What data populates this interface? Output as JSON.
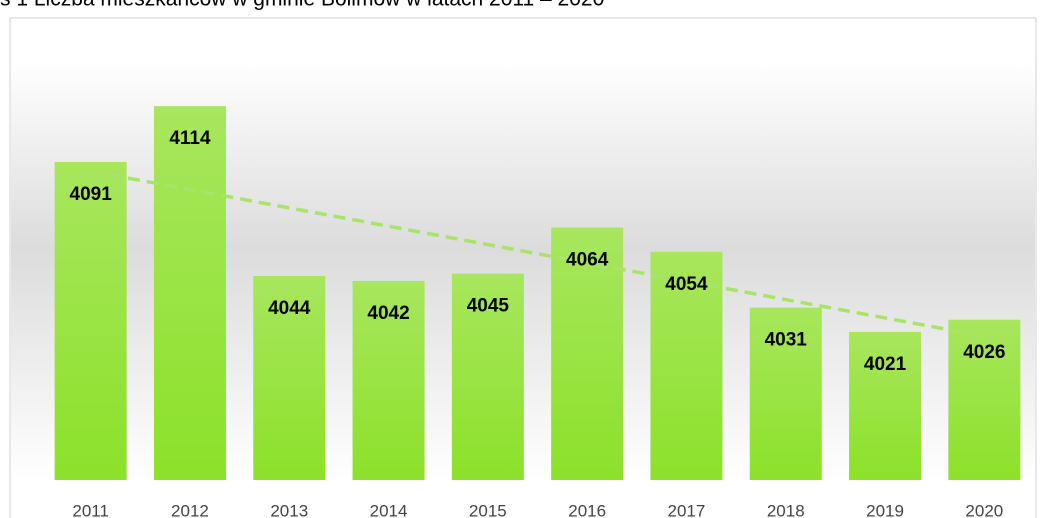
{
  "chart_data": {
    "type": "bar",
    "title": "s 1 Liczba mieszkańców w gminie Bolimów w latach 2011 – 2020",
    "categories": [
      "2011",
      "2012",
      "2013",
      "2014",
      "2015",
      "2016",
      "2017",
      "2018",
      "2019",
      "2020"
    ],
    "values": [
      4091,
      4114,
      4044,
      4042,
      4045,
      4064,
      4054,
      4031,
      4021,
      4026
    ],
    "color": "#92e03a",
    "ylim": [
      3960,
      4140
    ],
    "trendline": true,
    "trendline_color": "#a8e46a"
  }
}
